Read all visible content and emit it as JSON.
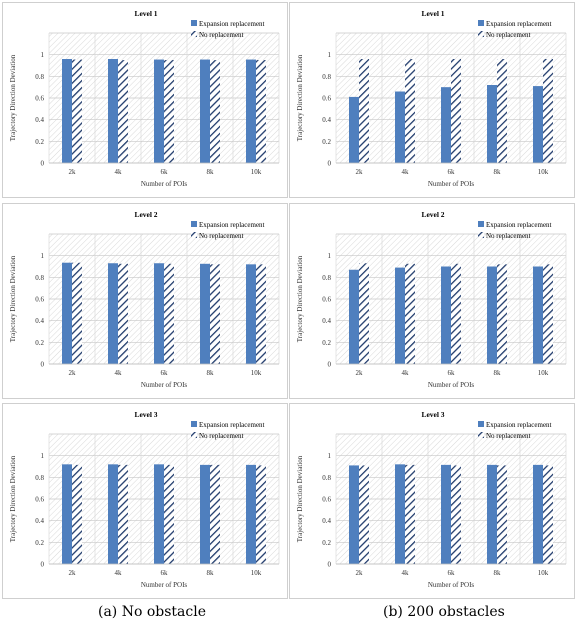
{
  "captions": {
    "left": "(a) No obstacle",
    "right": "(b) 200 obstacles"
  },
  "patterns": {
    "bg_hatch_color": "#d9d9d9",
    "series_solid_color": "#4f7fbe",
    "series_hatch_color": "#1f3a6b"
  },
  "chart_data": [
    {
      "type": "bar",
      "title": "Level 1",
      "xlabel": "Number of POIs",
      "ylabel": "Trajectory Direction Deviation",
      "categories": [
        "2k",
        "4k",
        "6k",
        "8k",
        "10k"
      ],
      "yticks": [
        "0",
        "0.2",
        "0.4",
        "0.6",
        "0.8",
        "1"
      ],
      "ylim": [
        0,
        1.2
      ],
      "grid": true,
      "legend": "top-right",
      "series": [
        {
          "name": "Expansion replacement",
          "style": "solid",
          "values": [
            0.96,
            0.96,
            0.955,
            0.955,
            0.955
          ]
        },
        {
          "name": "No replacement",
          "style": "hatched",
          "values": [
            0.955,
            0.95,
            0.95,
            0.95,
            0.95
          ]
        }
      ]
    },
    {
      "type": "bar",
      "title": "Level 1",
      "xlabel": "Number of POIs",
      "ylabel": "Trajectory Direction Deviation",
      "categories": [
        "2k",
        "4k",
        "6k",
        "8k",
        "10k"
      ],
      "yticks": [
        "0",
        "0.2",
        "0.4",
        "0.6",
        "0.8",
        "1"
      ],
      "ylim": [
        0,
        1.2
      ],
      "grid": true,
      "legend": "top-right",
      "series": [
        {
          "name": "Expansion replacement",
          "style": "solid",
          "values": [
            0.61,
            0.66,
            0.7,
            0.72,
            0.71
          ]
        },
        {
          "name": "No replacement",
          "style": "hatched",
          "values": [
            0.96,
            0.96,
            0.96,
            0.96,
            0.96
          ]
        }
      ]
    },
    {
      "type": "bar",
      "title": "Level 2",
      "xlabel": "Number of POIs",
      "ylabel": "Trajectory Direction Deviation",
      "categories": [
        "2k",
        "4k",
        "6k",
        "8k",
        "10k"
      ],
      "yticks": [
        "0",
        "0.2",
        "0.4",
        "0.6",
        "0.8",
        "1"
      ],
      "ylim": [
        0,
        1.2
      ],
      "grid": true,
      "legend": "top-right",
      "series": [
        {
          "name": "Expansion replacement",
          "style": "solid",
          "values": [
            0.935,
            0.93,
            0.93,
            0.925,
            0.92
          ]
        },
        {
          "name": "No replacement",
          "style": "hatched",
          "values": [
            0.935,
            0.925,
            0.925,
            0.92,
            0.92
          ]
        }
      ]
    },
    {
      "type": "bar",
      "title": "Level 2",
      "xlabel": "Number of POIs",
      "ylabel": "Trajectory Direction Deviation",
      "categories": [
        "2k",
        "4k",
        "6k",
        "8k",
        "10k"
      ],
      "yticks": [
        "0",
        "0.2",
        "0.4",
        "0.6",
        "0.8",
        "1"
      ],
      "ylim": [
        0,
        1.2
      ],
      "grid": true,
      "legend": "top-right",
      "series": [
        {
          "name": "Expansion replacement",
          "style": "solid",
          "values": [
            0.87,
            0.89,
            0.9,
            0.9,
            0.9
          ]
        },
        {
          "name": "No replacement",
          "style": "hatched",
          "values": [
            0.93,
            0.925,
            0.925,
            0.92,
            0.92
          ]
        }
      ]
    },
    {
      "type": "bar",
      "title": "Level 3",
      "xlabel": "Number of POIs",
      "ylabel": "Trajectory Direction Deviation",
      "categories": [
        "2k",
        "4k",
        "6k",
        "8k",
        "10k"
      ],
      "yticks": [
        "0",
        "0.2",
        "0.4",
        "0.6",
        "0.8",
        "1"
      ],
      "ylim": [
        0,
        1.2
      ],
      "grid": true,
      "legend": "top-right",
      "series": [
        {
          "name": "Expansion replacement",
          "style": "solid",
          "values": [
            0.92,
            0.92,
            0.92,
            0.915,
            0.915
          ]
        },
        {
          "name": "No replacement",
          "style": "hatched",
          "values": [
            0.915,
            0.915,
            0.915,
            0.915,
            0.91
          ]
        }
      ]
    },
    {
      "type": "bar",
      "title": "Level 3",
      "xlabel": "Number of POIs",
      "ylabel": "Trajectory Direction Deviation",
      "categories": [
        "2k",
        "4k",
        "6k",
        "8k",
        "10k"
      ],
      "yticks": [
        "0",
        "0.2",
        "0.4",
        "0.6",
        "0.8",
        "1"
      ],
      "ylim": [
        0,
        1.2
      ],
      "grid": true,
      "legend": "top-right",
      "series": [
        {
          "name": "Expansion replacement",
          "style": "solid",
          "values": [
            0.91,
            0.92,
            0.915,
            0.915,
            0.915
          ]
        },
        {
          "name": "No replacement",
          "style": "hatched",
          "values": [
            0.91,
            0.915,
            0.91,
            0.91,
            0.91
          ]
        }
      ]
    }
  ]
}
